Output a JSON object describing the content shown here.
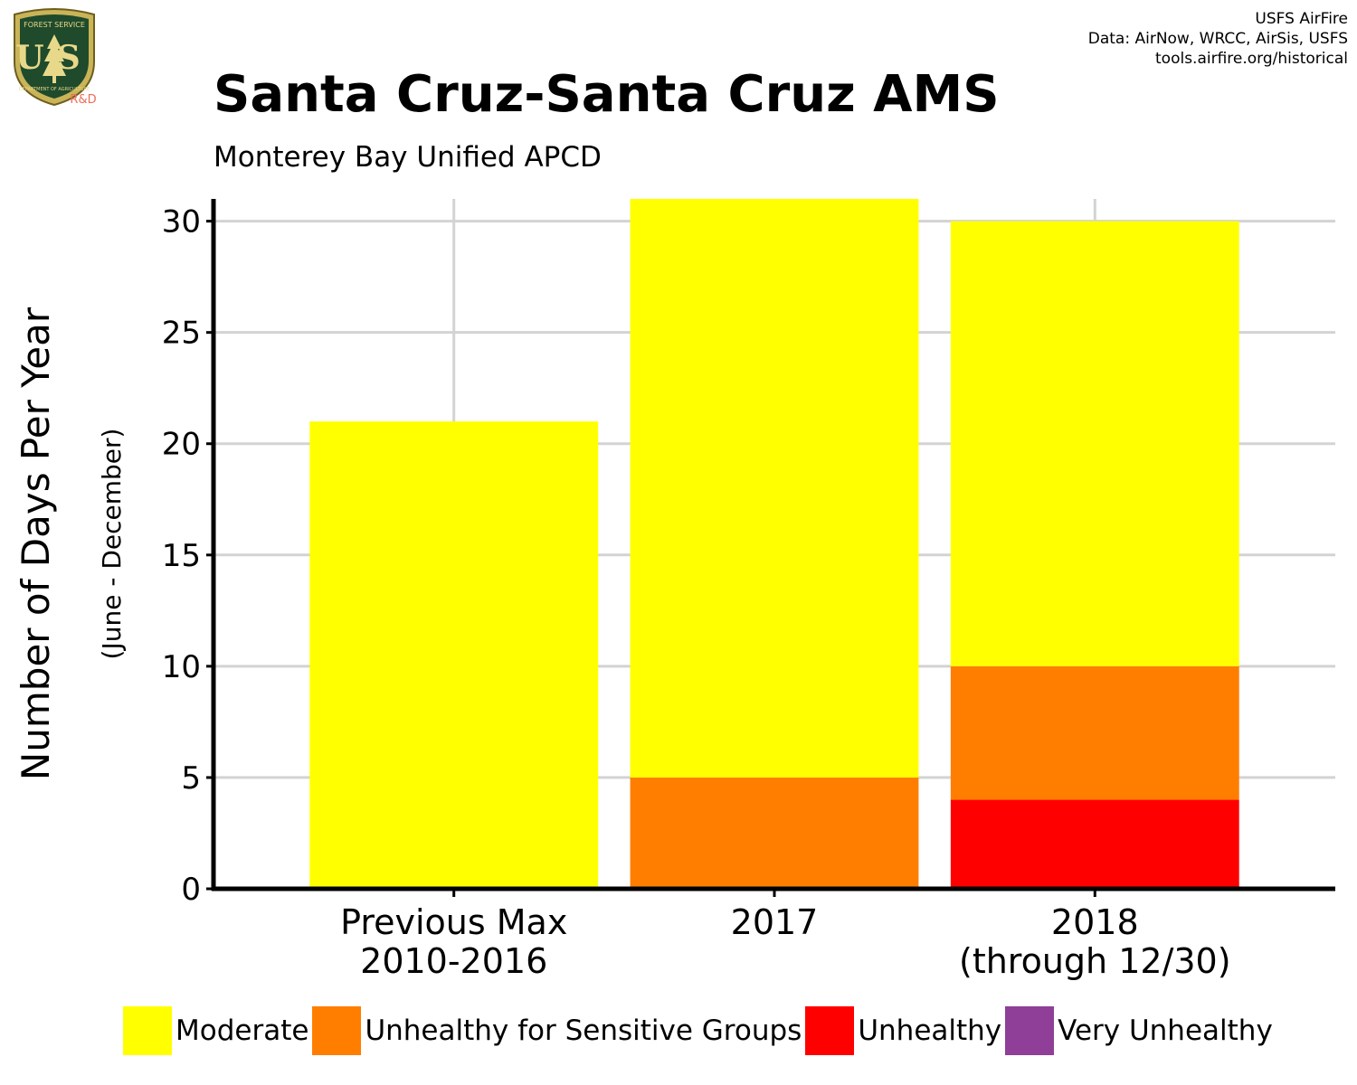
{
  "header": {
    "title": "Santa Cruz-Santa Cruz AMS",
    "subtitle": "Monterey Bay Unified APCD",
    "credits": [
      "USFS AirFire",
      "Data: AirNow, WRCC, AirSis, USFS",
      "tools.airfire.org/historical"
    ]
  },
  "logo": {
    "icon": "usfs-shield-logo",
    "top_text": "FOREST SERVICE",
    "letters": "US",
    "bottom_text": "DEPARTMENT OF AGRICULTURE",
    "badge": "R&D"
  },
  "colors": {
    "Moderate": "#ffff00",
    "Unhealthy for Sensitive Groups": "#ff7e00",
    "Unhealthy": "#ff0000",
    "Very Unhealthy": "#8f3f97",
    "grid": "#d3d3d3",
    "axis": "#000000"
  },
  "chart_data": {
    "type": "bar",
    "stacked": true,
    "categories": [
      "Previous Max\n2010-2016",
      "2017",
      "2018\n(through 12/30)"
    ],
    "series": [
      {
        "name": "Unhealthy",
        "values": [
          0,
          0,
          4
        ]
      },
      {
        "name": "Unhealthy for Sensitive Groups",
        "values": [
          0,
          5,
          6
        ]
      },
      {
        "name": "Moderate",
        "values": [
          21,
          26,
          20
        ]
      },
      {
        "name": "Very Unhealthy",
        "values": [
          0,
          0,
          0
        ]
      }
    ],
    "ylabel": "Number of Days Per Year",
    "ylabel_sub": "(June - December)",
    "ylim": [
      0,
      31
    ],
    "yticks": [
      0,
      5,
      10,
      15,
      20,
      25,
      30
    ],
    "grid": true,
    "legend_position": "bottom",
    "legend": [
      "Moderate",
      "Unhealthy for Sensitive Groups",
      "Unhealthy",
      "Very Unhealthy"
    ]
  }
}
